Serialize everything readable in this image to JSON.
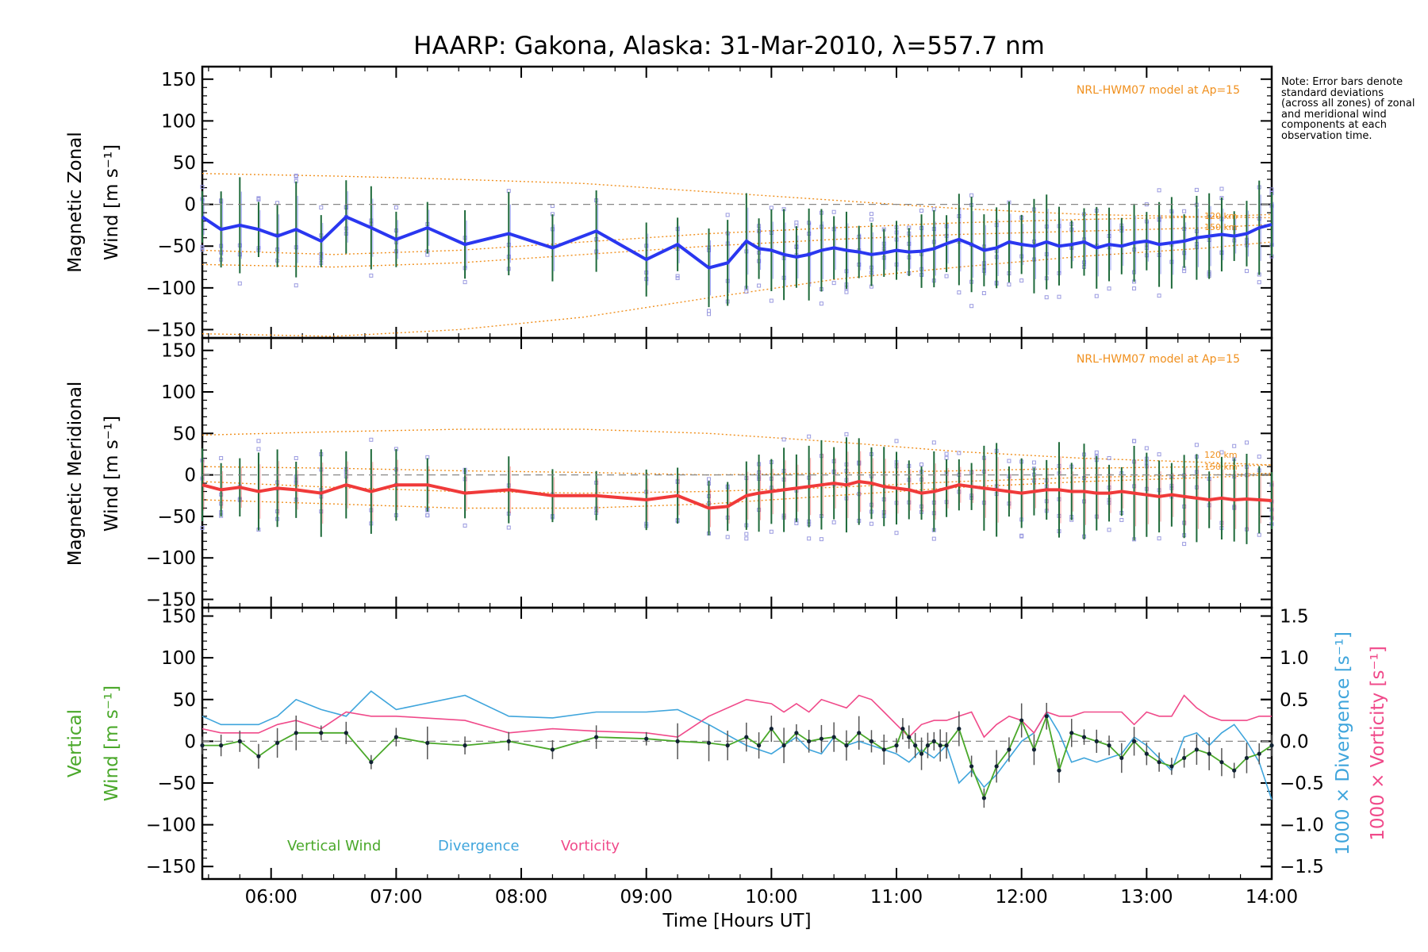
{
  "title": "HAARP: Gakona,  Alaska: 31-Mar-2010, λ=557.7 nm",
  "note_text": "Note: Error bars denote standard deviations (across all zones) of zonal and meridional wind components at each observation time.",
  "x_axis": {
    "label": "Time [Hours UT]",
    "range": [
      5.45,
      14.0
    ],
    "tick_values": [
      6,
      7,
      8,
      9,
      10,
      11,
      12,
      13,
      14
    ],
    "tick_labels": [
      "06:00",
      "07:00",
      "08:00",
      "09:00",
      "10:00",
      "11:00",
      "12:00",
      "13:00",
      "14:00"
    ]
  },
  "y_tick_values": [
    -150,
    -100,
    -50,
    0,
    50,
    100,
    150
  ],
  "y_tick_labels": [
    "−150",
    "−100",
    "−50",
    "0",
    "50",
    "100",
    "150"
  ],
  "right_axis": {
    "tick_values": [
      -1.5,
      -1.0,
      -0.5,
      0.0,
      0.5,
      1.0,
      1.5
    ],
    "tick_labels": [
      "−1.5",
      "−1.0",
      "−0.5",
      "0.0",
      "0.5",
      "1.0",
      "1.5"
    ],
    "label_divergence": "1000 × Divergence [s⁻¹]",
    "label_vorticity": "1000 × Vorticity [s⁻¹]"
  },
  "colors": {
    "zonal": "#2a37f0",
    "meridional": "#f03a3a",
    "vertical": "#4aa82a",
    "divergence": "#3fa5dc",
    "vorticity": "#f04a8a",
    "model": "#f0901e",
    "zone_points": "#9a9ae0",
    "error_bar": "#1e6a3a"
  },
  "chart_data": [
    {
      "type": "line",
      "panel": "zonal",
      "ylabel_line1": "Magnetic Zonal",
      "ylabel_line2": "Wind [m s⁻¹]",
      "model_label": "NRL-HWM07 model at Ap=15",
      "model_annotations": [
        "120 km",
        "150 km"
      ],
      "ylim": [
        -160,
        165
      ],
      "x": [
        5.45,
        5.6,
        5.75,
        5.9,
        6.05,
        6.2,
        6.4,
        6.6,
        6.8,
        7.0,
        7.25,
        7.55,
        7.9,
        8.25,
        8.6,
        9.0,
        9.25,
        9.5,
        9.65,
        9.8,
        9.9,
        10.0,
        10.1,
        10.2,
        10.3,
        10.4,
        10.5,
        10.6,
        10.7,
        10.8,
        10.9,
        11.0,
        11.1,
        11.2,
        11.3,
        11.4,
        11.5,
        11.6,
        11.7,
        11.8,
        11.9,
        12.0,
        12.1,
        12.2,
        12.3,
        12.4,
        12.5,
        12.6,
        12.7,
        12.8,
        12.9,
        13.0,
        13.1,
        13.2,
        13.3,
        13.4,
        13.5,
        13.6,
        13.7,
        13.8,
        13.9,
        14.0
      ],
      "series": [
        {
          "values": [
            -15,
            -30,
            -25,
            -30,
            -38,
            -30,
            -44,
            -15,
            -28,
            -42,
            -28,
            -48,
            -35,
            -52,
            -32,
            -66,
            -48,
            -76,
            -70,
            -44,
            -53,
            -55,
            -60,
            -63,
            -60,
            -55,
            -52,
            -55,
            -57,
            -60,
            -58,
            -55,
            -57,
            -56,
            -53,
            -47,
            -42,
            -48,
            -55,
            -52,
            -45,
            -48,
            -50,
            -45,
            -50,
            -48,
            -45,
            -52,
            -48,
            -50,
            -46,
            -44,
            -48,
            -46,
            -44,
            -40,
            -38,
            -36,
            -38,
            -35,
            -28,
            -24
          ]
        }
      ],
      "model_curves": [
        {
          "x": [
            5.45,
            6.5,
            7.5,
            8.5,
            9.5,
            10.5,
            11.5,
            12.5,
            13.5,
            14.0
          ],
          "values": [
            37,
            34,
            30,
            25,
            15,
            5,
            -5,
            -12,
            -15,
            -16
          ]
        },
        {
          "x": [
            5.45,
            6.5,
            7.5,
            8.5,
            9.5,
            10.5,
            11.5,
            12.5,
            13.5,
            14.0
          ],
          "values": [
            -55,
            -60,
            -55,
            -45,
            -35,
            -28,
            -22,
            -18,
            -15,
            -12
          ]
        },
        {
          "x": [
            5.45,
            6.5,
            7.5,
            8.5,
            9.5,
            10.5,
            11.5,
            12.5,
            13.5,
            14.0
          ],
          "values": [
            -72,
            -75,
            -70,
            -60,
            -50,
            -42,
            -36,
            -32,
            -28,
            -24
          ]
        },
        {
          "x": [
            5.45,
            6.5,
            7.5,
            8.5,
            9.5,
            10.5,
            11.5,
            12.5,
            13.5,
            14.0
          ],
          "values": [
            -155,
            -158,
            -150,
            -135,
            -112,
            -90,
            -75,
            -62,
            -52,
            -45
          ]
        }
      ]
    },
    {
      "type": "line",
      "panel": "meridional",
      "ylabel_line1": "Magnetic Meridional",
      "ylabel_line2": "Wind [m s⁻¹]",
      "model_label": "NRL-HWM07 model at Ap=15",
      "model_annotations": [
        "120 km",
        "150 km"
      ],
      "ylim": [
        -160,
        165
      ],
      "x": [
        5.45,
        5.6,
        5.75,
        5.9,
        6.05,
        6.2,
        6.4,
        6.6,
        6.8,
        7.0,
        7.25,
        7.55,
        7.9,
        8.25,
        8.6,
        9.0,
        9.25,
        9.5,
        9.65,
        9.8,
        9.9,
        10.0,
        10.1,
        10.2,
        10.3,
        10.4,
        10.5,
        10.6,
        10.7,
        10.8,
        10.9,
        11.0,
        11.1,
        11.2,
        11.3,
        11.4,
        11.5,
        11.6,
        11.7,
        11.8,
        11.9,
        12.0,
        12.1,
        12.2,
        12.3,
        12.4,
        12.5,
        12.6,
        12.7,
        12.8,
        12.9,
        13.0,
        13.1,
        13.2,
        13.3,
        13.4,
        13.5,
        13.6,
        13.7,
        13.8,
        13.9,
        14.0
      ],
      "series": [
        {
          "values": [
            -12,
            -18,
            -15,
            -20,
            -16,
            -18,
            -22,
            -12,
            -20,
            -12,
            -12,
            -22,
            -18,
            -25,
            -25,
            -30,
            -25,
            -40,
            -38,
            -25,
            -22,
            -20,
            -18,
            -16,
            -14,
            -12,
            -10,
            -12,
            -8,
            -10,
            -14,
            -16,
            -18,
            -22,
            -20,
            -16,
            -12,
            -14,
            -16,
            -18,
            -20,
            -22,
            -20,
            -18,
            -18,
            -20,
            -20,
            -22,
            -22,
            -20,
            -22,
            -24,
            -26,
            -24,
            -26,
            -28,
            -30,
            -28,
            -30,
            -29,
            -30,
            -31
          ]
        }
      ],
      "model_curves": [
        {
          "x": [
            5.45,
            6.5,
            7.5,
            8.5,
            9.5,
            10.5,
            11.5,
            12.5,
            13.5,
            14.0
          ],
          "values": [
            48,
            52,
            55,
            55,
            50,
            40,
            28,
            20,
            15,
            12
          ]
        },
        {
          "x": [
            5.45,
            6.5,
            7.5,
            8.5,
            9.5,
            10.5,
            11.5,
            12.5,
            13.5,
            14.0
          ],
          "values": [
            10,
            8,
            5,
            3,
            0,
            2,
            5,
            8,
            10,
            12
          ]
        },
        {
          "x": [
            5.45,
            6.5,
            7.5,
            8.5,
            9.5,
            10.5,
            11.5,
            12.5,
            13.5,
            14.0
          ],
          "values": [
            -8,
            -15,
            -20,
            -22,
            -20,
            -15,
            -8,
            -3,
            0,
            2
          ]
        },
        {
          "x": [
            5.45,
            6.5,
            7.5,
            8.5,
            9.5,
            10.5,
            11.5,
            12.5,
            13.5,
            14.0
          ],
          "values": [
            -30,
            -35,
            -40,
            -40,
            -35,
            -25,
            -15,
            -8,
            -3,
            0
          ]
        }
      ]
    },
    {
      "type": "line",
      "panel": "vertical",
      "ylabel_line1": "Vertical",
      "ylabel_line2": "Wind [m s⁻¹]",
      "ylim": [
        -165,
        160
      ],
      "y2lim": [
        -1.65,
        1.6
      ],
      "legend": [
        "Vertical Wind",
        "Divergence",
        "Vorticity"
      ],
      "series": [
        {
          "name": "Vertical Wind",
          "x": [
            5.45,
            5.6,
            5.75,
            5.9,
            6.05,
            6.2,
            6.4,
            6.6,
            6.8,
            7.0,
            7.25,
            7.55,
            7.9,
            8.25,
            8.6,
            9.0,
            9.25,
            9.5,
            9.65,
            9.8,
            9.9,
            10.0,
            10.1,
            10.2,
            10.3,
            10.4,
            10.5,
            10.6,
            10.7,
            10.8,
            10.9,
            11.0,
            11.05,
            11.1,
            11.15,
            11.2,
            11.25,
            11.3,
            11.35,
            11.4,
            11.5,
            11.6,
            11.7,
            11.8,
            11.9,
            12.0,
            12.1,
            12.2,
            12.3,
            12.4,
            12.5,
            12.6,
            12.7,
            12.8,
            12.9,
            13.0,
            13.1,
            13.2,
            13.3,
            13.4,
            13.5,
            13.6,
            13.7,
            13.8,
            13.9,
            14.0
          ],
          "values": [
            -5,
            -5,
            0,
            -18,
            -2,
            10,
            10,
            10,
            -25,
            5,
            -2,
            -5,
            0,
            -10,
            5,
            3,
            0,
            -2,
            -5,
            5,
            -5,
            15,
            -5,
            10,
            0,
            3,
            5,
            -5,
            10,
            0,
            -10,
            -5,
            15,
            5,
            -5,
            -15,
            -5,
            0,
            -5,
            -5,
            15,
            -30,
            -68,
            -30,
            -10,
            25,
            -10,
            30,
            -35,
            10,
            5,
            0,
            -5,
            -20,
            0,
            -15,
            -25,
            -30,
            -20,
            -10,
            -15,
            -25,
            -35,
            -20,
            -15,
            -5
          ]
        },
        {
          "name": "Divergence",
          "x": [
            5.45,
            5.6,
            5.9,
            6.05,
            6.2,
            6.4,
            6.6,
            6.8,
            7.0,
            7.55,
            7.9,
            8.25,
            8.6,
            9.0,
            9.25,
            9.5,
            9.8,
            10.0,
            10.1,
            10.2,
            10.3,
            10.4,
            10.5,
            10.6,
            10.7,
            10.8,
            10.9,
            11.0,
            11.1,
            11.2,
            11.3,
            11.4,
            11.5,
            11.6,
            11.7,
            11.8,
            11.9,
            12.0,
            12.1,
            12.2,
            12.3,
            12.4,
            12.5,
            12.6,
            12.7,
            12.8,
            12.9,
            13.0,
            13.1,
            13.2,
            13.3,
            13.4,
            13.5,
            13.6,
            13.7,
            13.8,
            13.9,
            14.0
          ],
          "values": [
            0.3,
            0.2,
            0.2,
            0.3,
            0.5,
            0.38,
            0.3,
            0.6,
            0.38,
            0.55,
            0.3,
            0.28,
            0.35,
            0.35,
            0.38,
            0.2,
            -0.05,
            -0.15,
            -0.05,
            0.05,
            -0.1,
            -0.15,
            0.05,
            -0.05,
            0.0,
            -0.05,
            -0.1,
            -0.15,
            -0.25,
            -0.1,
            -0.2,
            -0.05,
            -0.5,
            -0.35,
            -0.55,
            -0.4,
            -0.2,
            0.0,
            0.1,
            0.35,
            0.1,
            -0.25,
            -0.2,
            -0.25,
            -0.2,
            -0.15,
            0.05,
            -0.05,
            -0.2,
            -0.35,
            0.05,
            0.1,
            -0.05,
            0.1,
            0.2,
            0.0,
            -0.25,
            -0.7
          ]
        },
        {
          "name": "Vorticity",
          "x": [
            5.45,
            5.6,
            5.9,
            6.05,
            6.2,
            6.4,
            6.6,
            6.8,
            7.0,
            7.55,
            7.9,
            8.25,
            8.6,
            9.0,
            9.25,
            9.5,
            9.8,
            10.0,
            10.1,
            10.2,
            10.3,
            10.4,
            10.5,
            10.6,
            10.7,
            10.8,
            10.9,
            11.0,
            11.1,
            11.2,
            11.3,
            11.4,
            11.5,
            11.6,
            11.7,
            11.8,
            11.9,
            12.0,
            12.1,
            12.2,
            12.3,
            12.4,
            12.5,
            12.6,
            12.7,
            12.8,
            12.9,
            13.0,
            13.1,
            13.2,
            13.3,
            13.4,
            13.5,
            13.6,
            13.7,
            13.8,
            13.9,
            14.0
          ],
          "values": [
            0.15,
            0.1,
            0.1,
            0.2,
            0.25,
            0.15,
            0.35,
            0.3,
            0.3,
            0.25,
            0.1,
            0.15,
            0.12,
            0.1,
            0.05,
            0.3,
            0.5,
            0.45,
            0.35,
            0.45,
            0.35,
            0.5,
            0.45,
            0.4,
            0.55,
            0.5,
            0.35,
            0.2,
            0.05,
            0.2,
            0.25,
            0.25,
            0.3,
            0.35,
            0.05,
            0.2,
            0.3,
            0.25,
            0.1,
            0.35,
            0.3,
            0.3,
            0.35,
            0.35,
            0.35,
            0.35,
            0.2,
            0.35,
            0.3,
            0.3,
            0.55,
            0.4,
            0.3,
            0.25,
            0.25,
            0.25,
            0.3,
            0.3
          ]
        }
      ]
    }
  ]
}
